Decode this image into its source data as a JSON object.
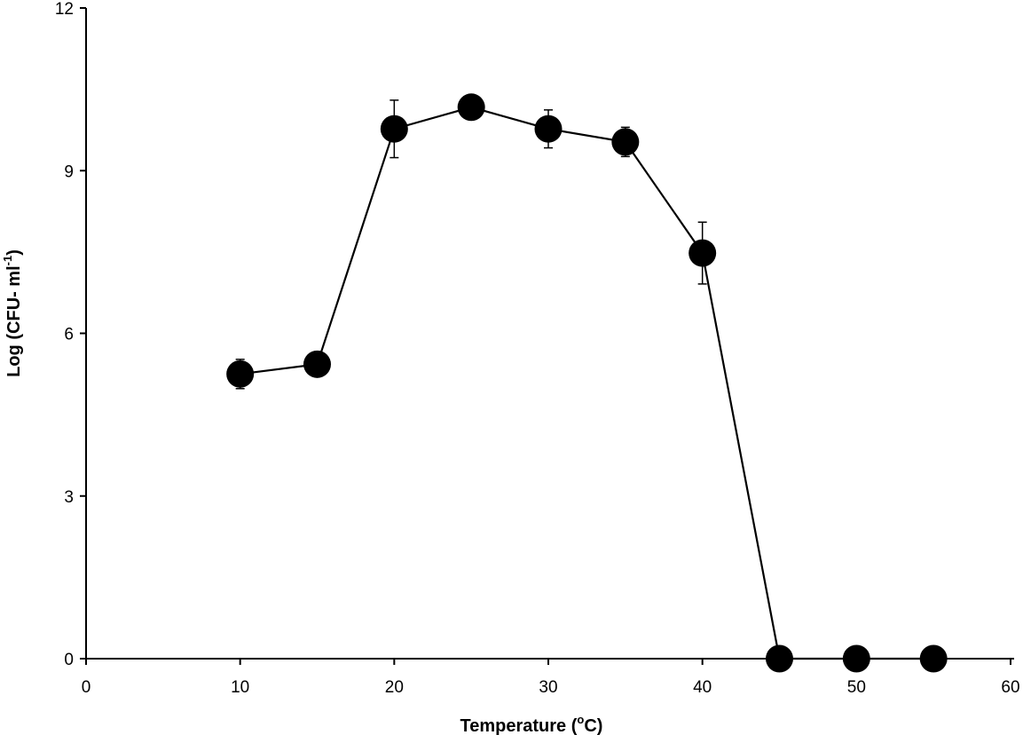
{
  "chart_data": {
    "type": "line",
    "title": "",
    "xlabel": {
      "text_before": "Temperature (",
      "superscript": "o",
      "text_after": "C)"
    },
    "ylabel": {
      "text_before": "Log (CFU- ml",
      "superscript": "-1",
      "text_after": ")"
    },
    "xlim": [
      0,
      60
    ],
    "ylim": [
      0,
      12
    ],
    "x_ticks": [
      0,
      10,
      20,
      30,
      40,
      50,
      60
    ],
    "y_ticks": [
      0,
      3,
      6,
      9,
      12
    ],
    "grid": false,
    "legend": "none",
    "marker": "filled-circle",
    "color": "#000000",
    "series": [
      {
        "x": [
          10,
          15,
          20,
          25,
          30,
          35,
          40,
          45,
          50,
          55
        ],
        "y": [
          5.25,
          5.43,
          9.77,
          10.17,
          9.77,
          9.53,
          7.48,
          0,
          0,
          0
        ],
        "error": [
          0.27,
          0.12,
          0.53,
          0.08,
          0.35,
          0.27,
          0.57,
          0,
          0,
          0
        ]
      }
    ]
  }
}
